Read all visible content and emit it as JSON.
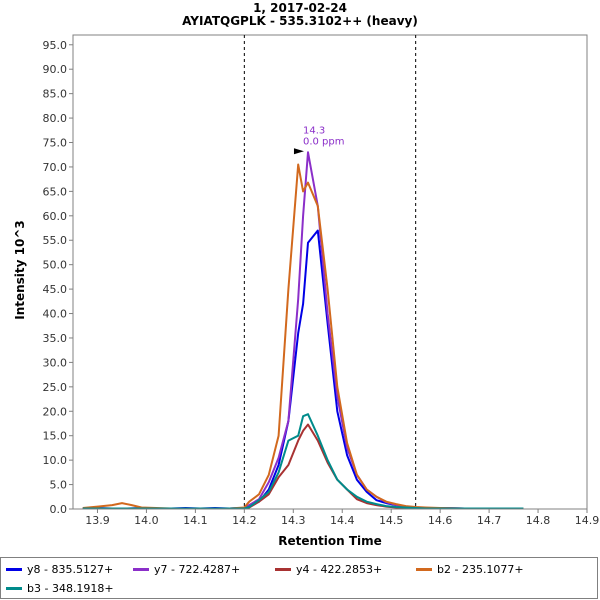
{
  "chart_data": {
    "type": "line",
    "title": "1, 2017-02-24",
    "subtitle": "AYIATQGPLK - 535.3102++ (heavy)",
    "xlabel": "Retention Time",
    "ylabel": "Intensity 10^3",
    "xlim": [
      13.85,
      14.9
    ],
    "ylim": [
      0,
      97
    ],
    "xticks": [
      "13.9",
      "14.0",
      "14.1",
      "14.2",
      "14.3",
      "14.4",
      "14.5",
      "14.6",
      "14.7",
      "14.8",
      "14.9"
    ],
    "yticks": [
      "0.0",
      "5.0",
      "10.0",
      "15.0",
      "20.0",
      "25.0",
      "30.0",
      "35.0",
      "40.0",
      "45.0",
      "50.0",
      "55.0",
      "60.0",
      "65.0",
      "70.0",
      "75.0",
      "80.0",
      "85.0",
      "90.0",
      "95.0"
    ],
    "grid": false,
    "legend_position": "bottom",
    "integration_bounds": [
      14.2,
      14.55
    ],
    "peak_annotation": {
      "x": 14.33,
      "y": 73.0,
      "rt_label": "14.3",
      "ppm_label": "0.0 ppm",
      "color": "#8b2fc9"
    },
    "series": [
      {
        "name": "y8 - 835.5127+",
        "color": "#0000e6",
        "x": [
          13.87,
          13.9,
          13.93,
          13.96,
          13.99,
          14.02,
          14.05,
          14.08,
          14.11,
          14.14,
          14.17,
          14.2,
          14.21,
          14.23,
          14.25,
          14.27,
          14.29,
          14.31,
          14.32,
          14.33,
          14.35,
          14.37,
          14.39,
          14.41,
          14.43,
          14.45,
          14.47,
          14.49,
          14.51,
          14.53,
          14.55,
          14.57,
          14.6,
          14.65,
          14.7,
          14.77
        ],
        "y": [
          0.1,
          0.2,
          0.1,
          0.1,
          0.2,
          0.1,
          0.1,
          0.2,
          0.1,
          0.2,
          0.1,
          0.2,
          0.5,
          1.5,
          4,
          9,
          18,
          36,
          42,
          54.5,
          57,
          38,
          20,
          11,
          6,
          3.5,
          1.8,
          1.2,
          0.8,
          0.5,
          0.3,
          0.2,
          0.2,
          0.1,
          0.1,
          0.1
        ]
      },
      {
        "name": "y7 - 722.4287+",
        "color": "#8b2fc9",
        "x": [
          13.87,
          13.9,
          13.93,
          13.96,
          13.99,
          14.02,
          14.05,
          14.08,
          14.11,
          14.14,
          14.17,
          14.2,
          14.21,
          14.23,
          14.25,
          14.27,
          14.29,
          14.31,
          14.32,
          14.33,
          14.35,
          14.37,
          14.39,
          14.41,
          14.43,
          14.45,
          14.47,
          14.49,
          14.51,
          14.53,
          14.55,
          14.57,
          14.6,
          14.65,
          14.7,
          14.77
        ],
        "y": [
          0.1,
          0.1,
          0.1,
          0.1,
          0.1,
          0.1,
          0.1,
          0.1,
          0.1,
          0.1,
          0.1,
          0.2,
          0.8,
          2,
          5.5,
          10.5,
          18,
          43,
          60,
          73,
          62,
          40,
          23,
          12.5,
          7,
          4,
          2.5,
          1.4,
          0.8,
          0.5,
          0.3,
          0.2,
          0.2,
          0.1,
          0.1,
          0.1
        ]
      },
      {
        "name": "y4 - 422.2853+",
        "color": "#a83232",
        "x": [
          13.87,
          13.9,
          13.93,
          13.96,
          13.99,
          14.02,
          14.05,
          14.08,
          14.11,
          14.14,
          14.17,
          14.2,
          14.21,
          14.23,
          14.25,
          14.27,
          14.29,
          14.31,
          14.32,
          14.33,
          14.35,
          14.37,
          14.39,
          14.41,
          14.43,
          14.45,
          14.47,
          14.49,
          14.51,
          14.53,
          14.55,
          14.57,
          14.6,
          14.65,
          14.7,
          14.77
        ],
        "y": [
          0.1,
          0.1,
          0.1,
          0.1,
          0.1,
          0.1,
          0.1,
          0.1,
          0.1,
          0.1,
          0.1,
          0.1,
          0.3,
          1.5,
          3,
          6.5,
          9,
          14,
          16,
          17.3,
          14,
          9.5,
          6,
          4,
          2,
          1.2,
          0.8,
          0.5,
          0.3,
          0.2,
          0.2,
          0.1,
          0.1,
          0.1,
          0.1,
          0.1
        ]
      },
      {
        "name": "b2 - 235.1077+",
        "color": "#d2691e",
        "x": [
          13.87,
          13.9,
          13.93,
          13.95,
          13.97,
          13.99,
          14.02,
          14.05,
          14.08,
          14.11,
          14.14,
          14.17,
          14.2,
          14.21,
          14.23,
          14.25,
          14.27,
          14.29,
          14.31,
          14.32,
          14.33,
          14.35,
          14.37,
          14.39,
          14.41,
          14.43,
          14.45,
          14.47,
          14.49,
          14.51,
          14.53,
          14.55,
          14.57,
          14.6,
          14.65,
          14.7,
          14.77
        ],
        "y": [
          0.2,
          0.5,
          0.8,
          1.2,
          0.8,
          0.3,
          0.2,
          0.1,
          0.1,
          0.1,
          0.1,
          0.1,
          0.3,
          1.5,
          3,
          7,
          15,
          45,
          70.5,
          65,
          66.8,
          62,
          45,
          25,
          13.5,
          7,
          4,
          2.5,
          1.5,
          1,
          0.6,
          0.4,
          0.3,
          0.2,
          0.1,
          0.1,
          0.1
        ]
      },
      {
        "name": "b3 - 348.1918+",
        "color": "#008b8b",
        "x": [
          13.87,
          13.9,
          13.93,
          13.96,
          13.99,
          14.02,
          14.05,
          14.08,
          14.11,
          14.14,
          14.17,
          14.2,
          14.21,
          14.23,
          14.25,
          14.27,
          14.29,
          14.31,
          14.32,
          14.33,
          14.35,
          14.37,
          14.39,
          14.41,
          14.43,
          14.45,
          14.47,
          14.49,
          14.51,
          14.53,
          14.55,
          14.57,
          14.6,
          14.65,
          14.7,
          14.77
        ],
        "y": [
          0.1,
          0.1,
          0.1,
          0.1,
          0.1,
          0.1,
          0.1,
          0.1,
          0.1,
          0.1,
          0.1,
          0.1,
          0.4,
          1.8,
          3.5,
          7.5,
          14,
          15,
          19,
          19.4,
          15,
          10,
          6,
          4,
          2.5,
          1.5,
          1,
          0.6,
          0.4,
          0.3,
          0.2,
          0.1,
          0.1,
          0.1,
          0.1,
          0.1
        ]
      }
    ]
  }
}
